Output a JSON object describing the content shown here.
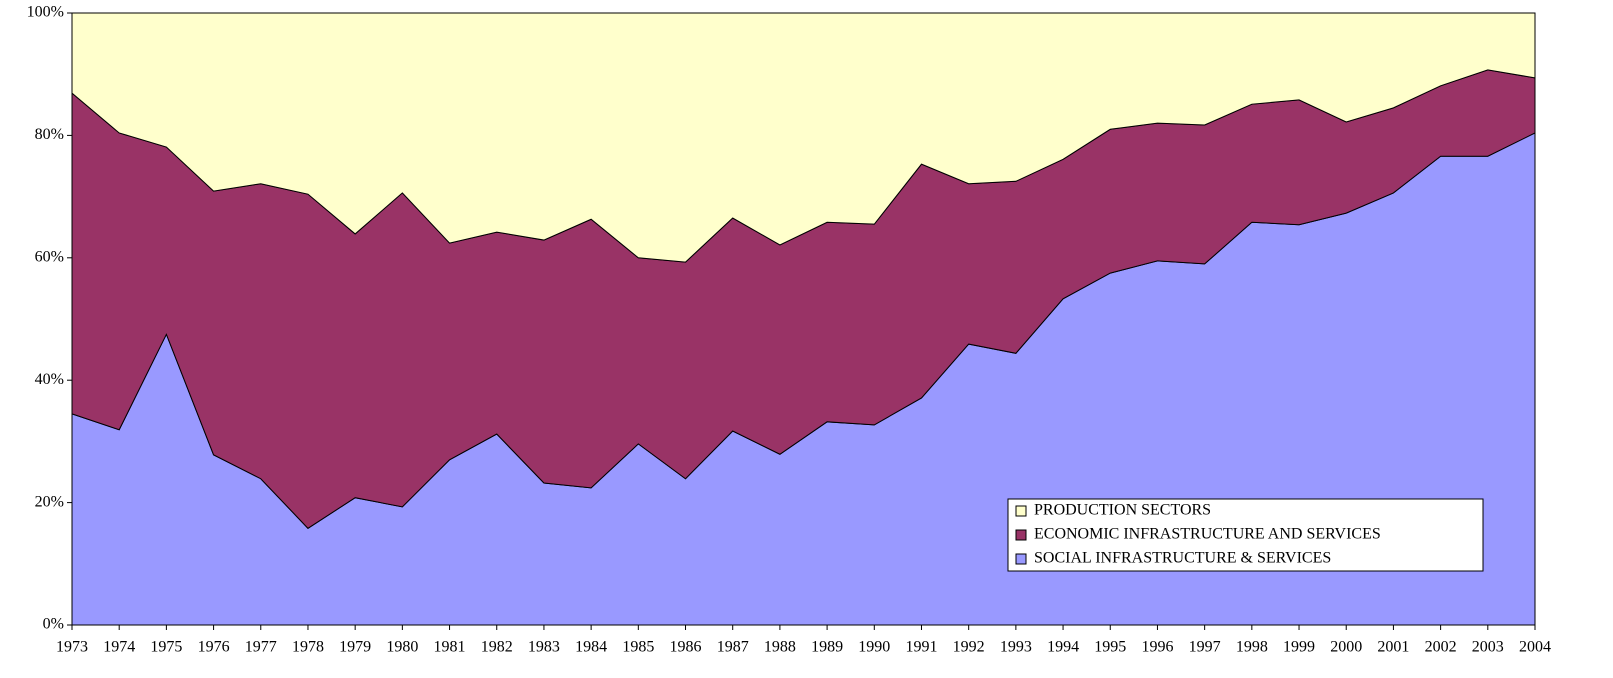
{
  "chart_data": {
    "type": "stacked_area_100",
    "categories": [
      "1973",
      "1974",
      "1975",
      "1976",
      "1977",
      "1978",
      "1979",
      "1980",
      "1981",
      "1982",
      "1983",
      "1984",
      "1985",
      "1986",
      "1987",
      "1988",
      "1989",
      "1990",
      "1991",
      "1992",
      "1993",
      "1994",
      "1995",
      "1996",
      "1997",
      "1998",
      "1999",
      "2000",
      "2001",
      "2002",
      "2003",
      "2004"
    ],
    "series": [
      {
        "name": "SOCIAL INFRASTRUCTURE & SERVICES",
        "color": "#9999ff",
        "values": [
          34.5,
          31.9,
          47.5,
          27.8,
          23.9,
          15.8,
          20.8,
          19.3,
          27.0,
          31.2,
          23.2,
          22.4,
          29.6,
          23.9,
          31.7,
          27.9,
          33.2,
          32.7,
          37.1,
          45.9,
          44.4,
          53.3,
          57.5,
          59.5,
          59.0,
          65.8,
          65.4,
          67.3,
          70.6,
          76.6,
          76.6,
          80.4
        ]
      },
      {
        "name": "ECONOMIC INFRASTRUCTURE AND SERVICES",
        "color": "#993366",
        "values": [
          52.4,
          48.5,
          30.6,
          43.1,
          48.2,
          54.6,
          43.1,
          51.3,
          35.4,
          33.0,
          39.7,
          43.9,
          30.4,
          35.4,
          34.8,
          34.2,
          32.6,
          32.8,
          38.2,
          26.2,
          28.1,
          22.8,
          23.5,
          22.5,
          22.7,
          19.3,
          20.4,
          14.9,
          13.9,
          11.5,
          14.1,
          9.0
        ]
      },
      {
        "name": "PRODUCTION SECTORS",
        "color": "#ffffcc",
        "values": [
          13.1,
          19.6,
          21.9,
          29.1,
          27.9,
          29.6,
          36.1,
          29.4,
          37.6,
          35.8,
          37.1,
          33.7,
          40.0,
          40.7,
          33.5,
          37.9,
          34.2,
          34.5,
          24.7,
          27.9,
          27.5,
          23.9,
          19.0,
          18.0,
          18.3,
          14.9,
          14.2,
          17.8,
          15.5,
          11.9,
          9.3,
          10.6
        ]
      }
    ],
    "ylim": [
      0,
      100
    ],
    "yticks": [
      {
        "value": 0,
        "label": "0%"
      },
      {
        "value": 20,
        "label": "20%"
      },
      {
        "value": 40,
        "label": "40%"
      },
      {
        "value": 60,
        "label": "60%"
      },
      {
        "value": 80,
        "label": "80%"
      },
      {
        "value": 100,
        "label": "100%"
      }
    ],
    "legend": "lower right"
  }
}
